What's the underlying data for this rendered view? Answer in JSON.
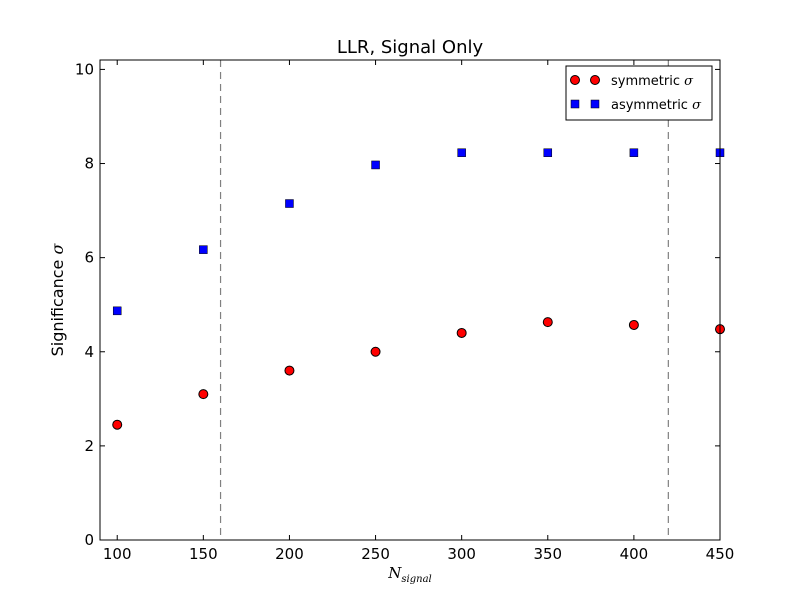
{
  "chart_data": {
    "type": "scatter",
    "title": "LLR, Signal Only",
    "xlabel": "N",
    "xlabel_sub": "signal",
    "ylabel": "Significance",
    "ylabel_symbol": "σ",
    "xlim": [
      90,
      450
    ],
    "ylim": [
      0,
      10.2
    ],
    "xticks": [
      100,
      150,
      200,
      250,
      300,
      350,
      400,
      450
    ],
    "yticks": [
      0,
      2,
      4,
      6,
      8,
      10
    ],
    "x": [
      100,
      150,
      200,
      250,
      300,
      350,
      400,
      450
    ],
    "series": [
      {
        "name": "symmetric σ",
        "label_text": "symmetric",
        "label_symbol": "σ",
        "marker": "circle",
        "color": "#ff0000",
        "values": [
          2.45,
          3.1,
          3.6,
          4.0,
          4.4,
          4.63,
          4.57,
          4.48
        ]
      },
      {
        "name": "asymmetric σ",
        "label_text": "asymmetric",
        "label_symbol": "σ",
        "marker": "square",
        "color": "#0000ff",
        "values": [
          4.87,
          6.17,
          7.15,
          7.97,
          8.23,
          8.23,
          8.23,
          8.23
        ]
      }
    ],
    "vlines": [
      160,
      420
    ],
    "vline_color": "#808080",
    "grid": false,
    "legend": "top-right"
  }
}
